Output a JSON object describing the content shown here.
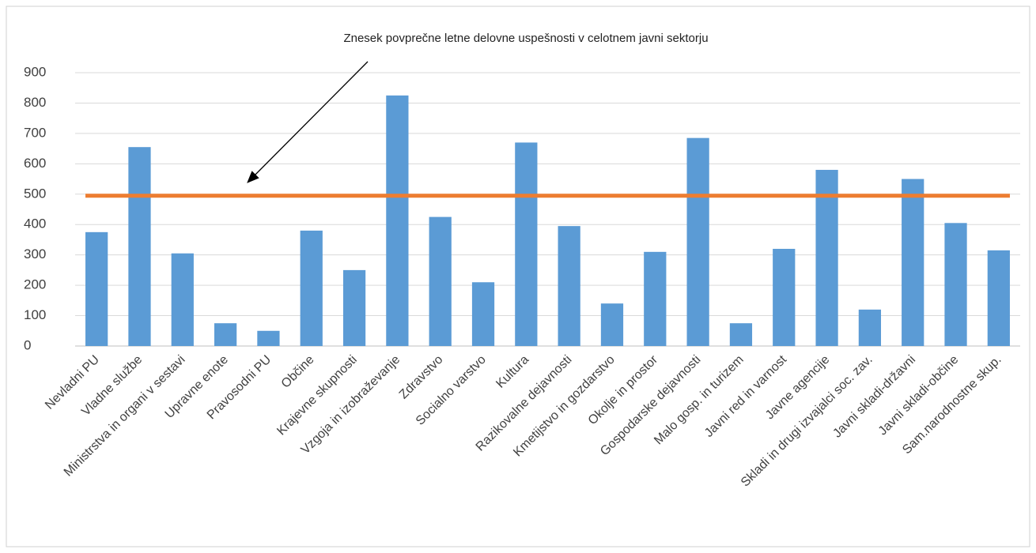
{
  "chart_data": {
    "type": "bar",
    "annotation": "Znesek povprečne letne delovne uspešnosti v celotnem javni sektorju",
    "categories": [
      "Nevladni PU",
      "Vladne službe",
      "Ministrstva in organi v sestavi",
      "Upravne enote",
      "Pravosodni PU",
      "Občine",
      "Krajevne skupnosti",
      "Vzgoja in izobraževanje",
      "Zdravstvo",
      "Socialno varstvo",
      "Kultura",
      "Razikovalne dejavnosti",
      "Kmetijstvo in gozdarstvo",
      "Okolje in prostor",
      "Gospodarske dejavnosti",
      "Malo gosp. in turizem",
      "Javni red in varnost",
      "Javne agencije",
      "Skladi in drugi izvajalci soc. zav.",
      "Javni skladi-državni",
      "Javni skladi-občine",
      "Sam.narodnostne skup."
    ],
    "values": [
      375,
      655,
      305,
      75,
      50,
      380,
      250,
      825,
      425,
      210,
      670,
      395,
      140,
      310,
      685,
      75,
      320,
      580,
      120,
      550,
      405,
      315
    ],
    "color": "#5b9bd5",
    "reference_line": {
      "value": 495,
      "color": "#ed7d31"
    },
    "ylim": [
      0,
      900
    ],
    "yticks": [
      0,
      100,
      200,
      300,
      400,
      500,
      600,
      700,
      800,
      900
    ],
    "grid": true
  }
}
